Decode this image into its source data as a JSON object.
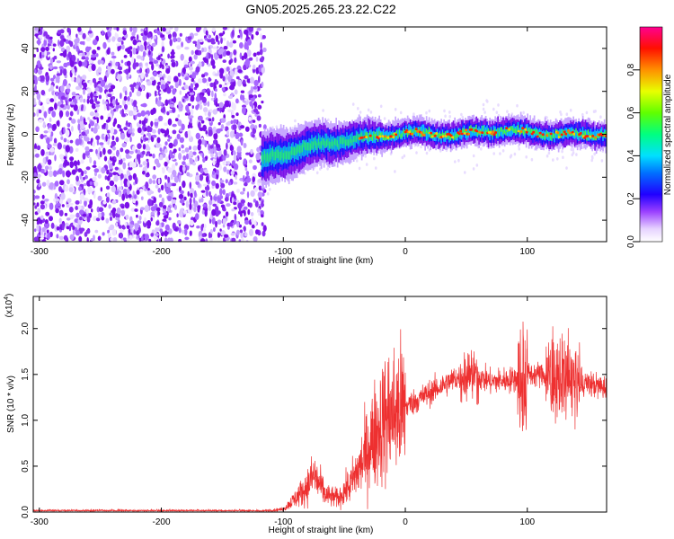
{
  "title": "GN05.2025.265.23.22.C22",
  "chart_data": [
    {
      "type": "heatmap",
      "name": "spectrogram",
      "xlabel": "Height of straight line (km)",
      "ylabel": "Frequency (Hz)",
      "xlim": [
        -305,
        165
      ],
      "ylim": [
        -50,
        50
      ],
      "xticks": [
        -300,
        -200,
        -100,
        0,
        100
      ],
      "yticks": [
        -40,
        -20,
        0,
        20,
        40
      ],
      "noise_region_x": [
        -305,
        -118
      ],
      "signal_region_x": [
        -118,
        165
      ],
      "center_track": [
        {
          "x": -118,
          "y": -12
        },
        {
          "x": -100,
          "y": -9
        },
        {
          "x": -80,
          "y": -6
        },
        {
          "x": -60,
          "y": -4
        },
        {
          "x": -40,
          "y": -2
        },
        {
          "x": -20,
          "y": -1
        },
        {
          "x": 0,
          "y": 1
        },
        {
          "x": 20,
          "y": 0
        },
        {
          "x": 40,
          "y": 0
        },
        {
          "x": 60,
          "y": 1
        },
        {
          "x": 80,
          "y": 2
        },
        {
          "x": 100,
          "y": 1
        },
        {
          "x": 120,
          "y": 0
        },
        {
          "x": 140,
          "y": 0
        },
        {
          "x": 165,
          "y": 0
        }
      ],
      "colorbar": {
        "label": "Normalized spectral amplitude",
        "range": [
          0,
          1
        ],
        "ticks": [
          "0.0",
          "0.2",
          "0.4",
          "0.6",
          "0.8"
        ],
        "colors": [
          "#ffffff",
          "#c8a0ff",
          "#7a00ff",
          "#0000ff",
          "#00c8ff",
          "#00ff60",
          "#a0ff00",
          "#ffff00",
          "#ff8000",
          "#ff0000",
          "#ff0080"
        ]
      }
    },
    {
      "type": "line",
      "name": "snr",
      "xlabel": "Height of straight line (km)",
      "ylabel": "SNR (10 * v/v)",
      "scale_label": "(x10",
      "scale_exp": "4",
      "scale_close": ")",
      "xlim": [
        -305,
        165
      ],
      "ylim": [
        0,
        2.35
      ],
      "xticks": [
        -300,
        -200,
        -100,
        0,
        100
      ],
      "yticks": [
        "0.0",
        "0.5",
        "1.0",
        "1.5",
        "2.0"
      ],
      "line_color": "#ee3030",
      "envelope": [
        {
          "x": -305,
          "y": 0.01
        },
        {
          "x": -120,
          "y": 0.01
        },
        {
          "x": -100,
          "y": 0.03
        },
        {
          "x": -82,
          "y": 0.25
        },
        {
          "x": -75,
          "y": 0.4
        },
        {
          "x": -65,
          "y": 0.18
        },
        {
          "x": -55,
          "y": 0.15
        },
        {
          "x": -45,
          "y": 0.3
        },
        {
          "x": -35,
          "y": 0.55
        },
        {
          "x": -25,
          "y": 0.85
        },
        {
          "x": -15,
          "y": 1.05
        },
        {
          "x": 0,
          "y": 1.15
        },
        {
          "x": 20,
          "y": 1.3
        },
        {
          "x": 40,
          "y": 1.45
        },
        {
          "x": 55,
          "y": 1.5
        },
        {
          "x": 70,
          "y": 1.42
        },
        {
          "x": 90,
          "y": 1.45
        },
        {
          "x": 98,
          "y": 1.5
        },
        {
          "x": 110,
          "y": 1.5
        },
        {
          "x": 130,
          "y": 1.45
        },
        {
          "x": 150,
          "y": 1.4
        },
        {
          "x": 165,
          "y": 1.35
        }
      ]
    }
  ]
}
